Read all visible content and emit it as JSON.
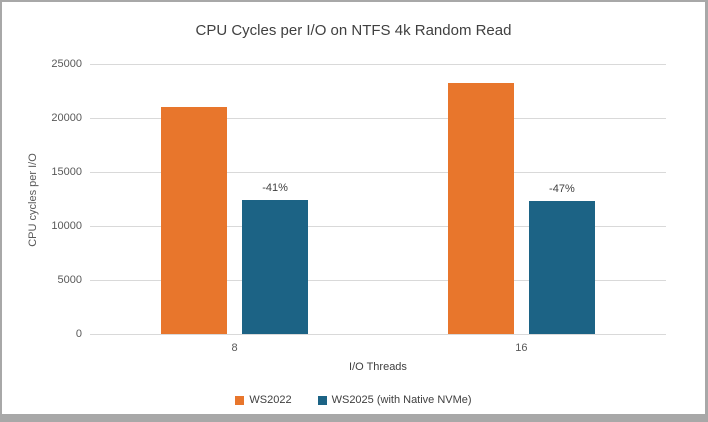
{
  "frame": {
    "border_color": "#a8a8a8",
    "background": "#ffffff"
  },
  "chart_data": {
    "type": "bar",
    "title": "CPU Cycles per I/O on NTFS 4k Random Read",
    "xlabel": "I/O Threads",
    "ylabel": "CPU cycles per I/O",
    "categories": [
      "8",
      "16"
    ],
    "series": [
      {
        "name": "WS2022",
        "color": "#e8762c",
        "values": [
          21000,
          23200
        ]
      },
      {
        "name": "WS2025 (with Native NVMe)",
        "color": "#1c6385",
        "values": [
          12400,
          12300
        ]
      }
    ],
    "bar_labels": [
      {
        "series": 1,
        "category_index": 0,
        "text": "-41%"
      },
      {
        "series": 1,
        "category_index": 1,
        "text": "-47%"
      }
    ],
    "ylim": [
      0,
      25000
    ],
    "yticks": [
      0,
      5000,
      10000,
      15000,
      20000,
      25000
    ],
    "grid": "horizontal",
    "gridline_color": "#d9d9d9",
    "legend_position": "bottom",
    "title_color": "#404040",
    "tick_color": "#595959",
    "label_color": "#404040"
  }
}
